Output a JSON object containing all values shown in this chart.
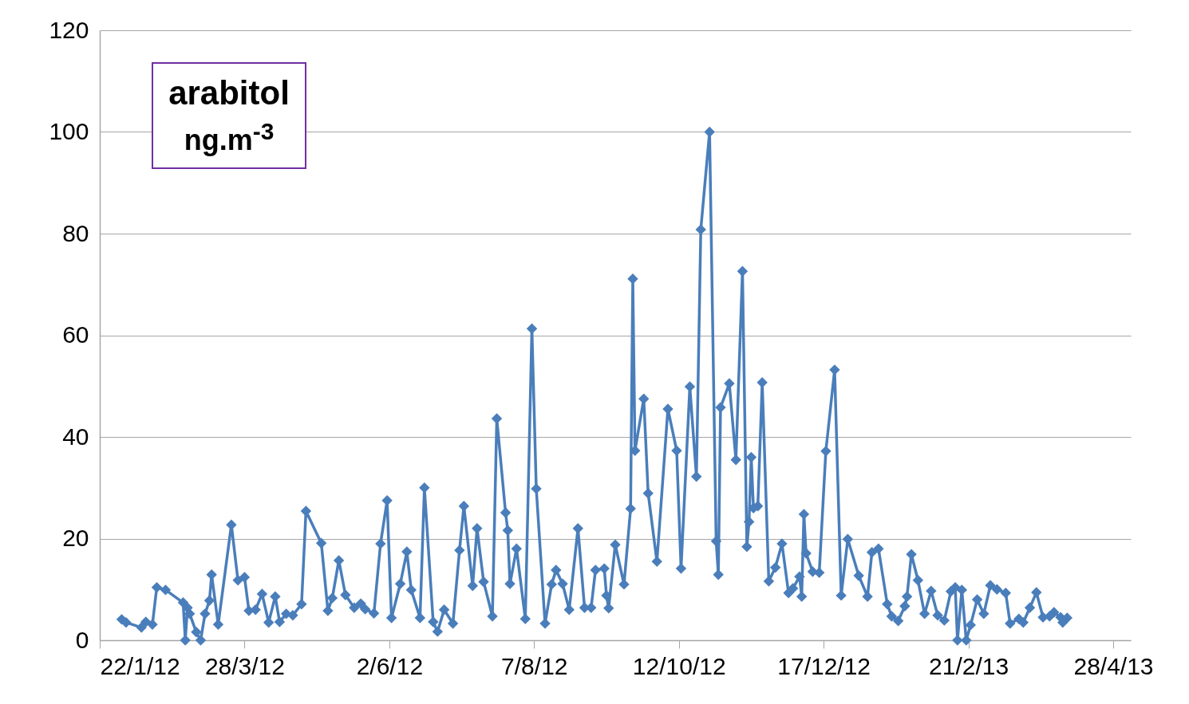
{
  "chart_data": {
    "type": "line",
    "annotations": [
      "arabitol",
      "ng.m$^{-3}$"
    ],
    "x": [
      "2012-02-01",
      "2012-02-03",
      "2012-02-10",
      "2012-02-12",
      "2012-02-15",
      "2012-02-17",
      "2012-02-21",
      "2012-02-29",
      "2012-03-01",
      "2012-03-02",
      "2012-03-03",
      "2012-03-06",
      "2012-03-08",
      "2012-03-10",
      "2012-03-12",
      "2012-03-13",
      "2012-03-16",
      "2012-03-22",
      "2012-03-25",
      "2012-03-28",
      "2012-03-30",
      "2012-04-02",
      "2012-04-05",
      "2012-04-08",
      "2012-04-11",
      "2012-04-13",
      "2012-04-16",
      "2012-04-19",
      "2012-04-23",
      "2012-04-25",
      "2012-05-02",
      "2012-05-05",
      "2012-05-07",
      "2012-05-10",
      "2012-05-13",
      "2012-05-17",
      "2012-05-20",
      "2012-05-22",
      "2012-05-26",
      "2012-05-29",
      "2012-06-01",
      "2012-06-03",
      "2012-06-07",
      "2012-06-10",
      "2012-06-12",
      "2012-06-16",
      "2012-06-18",
      "2012-06-22",
      "2012-06-24",
      "2012-06-27",
      "2012-07-01",
      "2012-07-04",
      "2012-07-06",
      "2012-07-10",
      "2012-07-12",
      "2012-07-15",
      "2012-07-19",
      "2012-07-21",
      "2012-07-25",
      "2012-07-26",
      "2012-07-27",
      "2012-07-30",
      "2012-08-03",
      "2012-08-06",
      "2012-08-08",
      "2012-08-12",
      "2012-08-15",
      "2012-08-17",
      "2012-08-20",
      "2012-08-23",
      "2012-08-27",
      "2012-08-30",
      "2012-09-02",
      "2012-09-04",
      "2012-09-08",
      "2012-09-09",
      "2012-09-10",
      "2012-09-13",
      "2012-09-17",
      "2012-09-20",
      "2012-09-21",
      "2012-09-22",
      "2012-09-26",
      "2012-09-28",
      "2012-10-02",
      "2012-10-07",
      "2012-10-11",
      "2012-10-13",
      "2012-10-17",
      "2012-10-20",
      "2012-10-22",
      "2012-10-26",
      "2012-10-29",
      "2012-10-30",
      "2012-10-31",
      "2012-11-04",
      "2012-11-07",
      "2012-11-10",
      "2012-11-12",
      "2012-11-13",
      "2012-11-14",
      "2012-11-15",
      "2012-11-17",
      "2012-11-19",
      "2012-11-22",
      "2012-11-25",
      "2012-11-28",
      "2012-12-01",
      "2012-12-03",
      "2012-12-06",
      "2012-12-07",
      "2012-12-08",
      "2012-12-09",
      "2012-12-12",
      "2012-12-15",
      "2012-12-18",
      "2012-12-22",
      "2012-12-25",
      "2012-12-28",
      "2013-01-02",
      "2013-01-06",
      "2013-01-08",
      "2013-01-11",
      "2013-01-15",
      "2013-01-17",
      "2013-01-20",
      "2013-01-23",
      "2013-01-24",
      "2013-01-26",
      "2013-01-29",
      "2013-02-01",
      "2013-02-04",
      "2013-02-07",
      "2013-02-10",
      "2013-02-13",
      "2013-02-15",
      "2013-02-16",
      "2013-02-18",
      "2013-02-20",
      "2013-02-22",
      "2013-02-25",
      "2013-02-28",
      "2013-03-03",
      "2013-03-06",
      "2013-03-10",
      "2013-03-12",
      "2013-03-16",
      "2013-03-18",
      "2013-03-21",
      "2013-03-24",
      "2013-03-27",
      "2013-03-30",
      "2013-04-01",
      "2013-04-04",
      "2013-04-05",
      "2013-04-07"
    ],
    "series": [
      {
        "color": "#4a7ebb",
        "values": [
          4.1,
          3.5,
          2.5,
          3.6,
          3.1,
          10.4,
          9.9,
          7.4,
          0,
          6.4,
          5.2,
          1.6,
          0,
          5.2,
          7.8,
          12.9,
          3.1,
          22.7,
          11.8,
          12.4,
          5.8,
          6.0,
          9.1,
          3.5,
          8.6,
          3.6,
          5.2,
          4.9,
          7.1,
          25.4,
          19.1,
          5.8,
          8.3,
          15.7,
          8.9,
          6.4,
          7.2,
          6.1,
          5.3,
          19.0,
          27.5,
          4.4,
          11.1,
          17.4,
          9.9,
          4.4,
          30.0,
          3.6,
          1.7,
          6.0,
          3.3,
          17.7,
          26.4,
          10.7,
          22.0,
          11.5,
          4.7,
          43.6,
          25.1,
          21.6,
          11.1,
          18.0,
          4.2,
          61.3,
          29.8,
          3.3,
          11.0,
          13.8,
          11.1,
          6.0,
          22.0,
          6.4,
          6.4,
          13.8,
          14.1,
          8.8,
          6.3,
          18.8,
          11.0,
          25.9,
          71.1,
          37.3,
          47.5,
          28.9,
          15.5,
          45.5,
          37.3,
          14.1,
          49.9,
          32.2,
          80.8,
          100,
          19.5,
          12.9,
          45.8,
          50.5,
          35.5,
          72.6,
          18.4,
          23.3,
          36.0,
          26.0,
          26.4,
          50.7,
          11.6,
          14.3,
          19.0,
          9.3,
          10.2,
          12.5,
          8.6,
          24.8,
          17.1,
          13.5,
          13.3,
          37.2,
          53.2,
          8.8,
          19.9,
          12.7,
          8.6,
          17.3,
          18.0,
          7.1,
          4.7,
          3.8,
          6.7,
          8.6,
          16.9,
          11.8,
          5.2,
          9.7,
          4.9,
          3.9,
          9.6,
          10.4,
          0,
          9.9,
          0,
          3.0,
          8.0,
          5.2,
          10.8,
          10.0,
          9.3,
          3.3,
          4.2,
          3.5,
          6.4,
          9.4,
          4.5,
          4.7,
          5.5,
          4.5,
          3.5,
          4.4
        ]
      }
    ],
    "xlim": [
      "2012-01-22",
      "2013-05-06"
    ],
    "xticks": [
      {
        "value": "2012-01-22",
        "label": "22/1/12"
      },
      {
        "value": "2012-03-28",
        "label": "28/3/12"
      },
      {
        "value": "2012-06-02",
        "label": "2/6/12"
      },
      {
        "value": "2012-08-07",
        "label": "7/8/12"
      },
      {
        "value": "2012-10-12",
        "label": "12/10/12"
      },
      {
        "value": "2012-12-17",
        "label": "17/12/12"
      },
      {
        "value": "2013-02-21",
        "label": "21/2/13"
      },
      {
        "value": "2013-04-28",
        "label": "28/4/13"
      }
    ],
    "ylim": [
      0,
      120
    ],
    "yticks": [
      0,
      20,
      40,
      60,
      80,
      100,
      120
    ],
    "grid": "y",
    "marker": "diamond",
    "line_style": "solid"
  }
}
